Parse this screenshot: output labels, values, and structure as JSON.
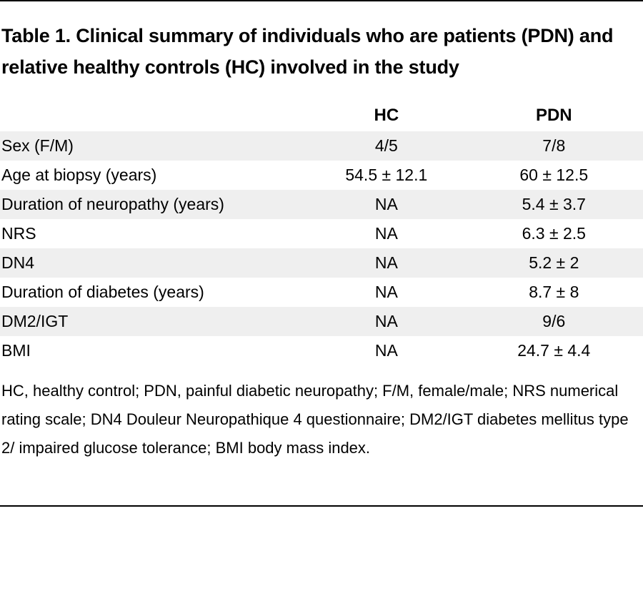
{
  "title": "Table 1. Clinical summary of individuals who are patients (PDN) and relative healthy controls (HC) involved in the study",
  "table": {
    "headers": [
      "",
      "HC",
      "PDN"
    ],
    "rows": [
      {
        "label": "Sex (F/M)",
        "hc": "4/5",
        "pdn": "7/8"
      },
      {
        "label": "Age at biopsy (years)",
        "hc": "54.5 ± 12.1",
        "pdn": "60 ± 12.5"
      },
      {
        "label": "Duration of neuropathy (years)",
        "hc": "NA",
        "pdn": "5.4 ± 3.7"
      },
      {
        "label": "NRS",
        "hc": "NA",
        "pdn": "6.3 ± 2.5"
      },
      {
        "label": "DN4",
        "hc": "NA",
        "pdn": "5.2 ± 2"
      },
      {
        "label": "Duration of diabetes (years)",
        "hc": "NA",
        "pdn": "8.7 ± 8"
      },
      {
        "label": "DM2/IGT",
        "hc": "NA",
        "pdn": "9/6"
      },
      {
        "label": "BMI",
        "hc": "NA",
        "pdn": "24.7 ± 4.4"
      }
    ]
  },
  "footnote": "HC, healthy control; PDN, painful diabetic neuropathy; F/M, female/male; NRS numerical rating scale; DN4 Douleur Neuropathique 4 questionnaire; DM2/IGT diabetes mellitus type 2/ impaired glucose tolerance; BMI body mass index."
}
